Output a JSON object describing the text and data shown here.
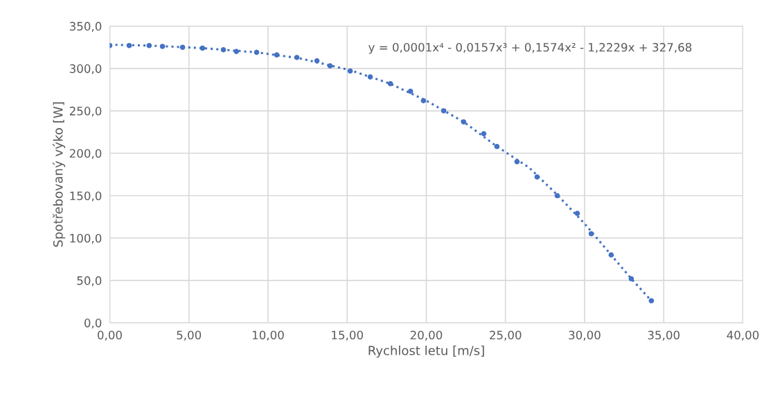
{
  "chart_data": {
    "type": "scatter",
    "xlabel": "Rychlost letu [m/s]",
    "ylabel": "Spotřebovaný výko [W]",
    "annotations": [
      "y = 0,0001x⁴ - 0,0157x³ + 0,1574x² - 1,2229x + 327,68"
    ],
    "x": [
      0,
      1.23,
      2.49,
      3.33,
      4.6,
      5.86,
      7.18,
      8.0,
      9.28,
      10.55,
      11.82,
      13.09,
      13.92,
      15.19,
      16.46,
      17.73,
      19.0,
      19.82,
      21.1,
      22.36,
      23.63,
      24.46,
      25.73,
      27.0,
      28.27,
      29.54,
      30.42,
      31.68,
      32.95,
      34.22
    ],
    "series": [
      {
        "color": "#4472c4",
        "marker": "circle",
        "values": [
          327,
          327,
          327,
          326,
          325,
          324,
          322,
          320,
          319,
          316,
          313,
          309,
          303,
          297,
          290,
          282,
          273,
          262,
          250,
          237,
          223,
          208,
          190,
          172,
          150,
          129,
          105,
          80,
          52,
          26
        ]
      },
      {
        "type": "line",
        "color": "#4472c4",
        "line_style": "dotted",
        "x": [
          0,
          2.49,
          5.86,
          9.28,
          12.0,
          15.19,
          17.73,
          20.0,
          22.36,
          24.46,
          26.5,
          28.27,
          30.0,
          31.68,
          33.0,
          34.22
        ],
        "values": [
          328,
          327,
          324,
          319,
          312,
          298,
          282,
          262,
          237,
          208,
          183,
          151,
          117,
          80,
          51,
          26
        ]
      }
    ],
    "xlim": [
      0,
      40
    ],
    "xticks": [
      {
        "value": 0,
        "label": "0,00"
      },
      {
        "value": 5,
        "label": "5,00"
      },
      {
        "value": 10,
        "label": "10,00"
      },
      {
        "value": 15,
        "label": "15,00"
      },
      {
        "value": 20,
        "label": "20,00"
      },
      {
        "value": 25,
        "label": "25,00"
      },
      {
        "value": 30,
        "label": "30,00"
      },
      {
        "value": 35,
        "label": "35,00"
      },
      {
        "value": 40,
        "label": "40,00"
      }
    ],
    "ylim": [
      0,
      350
    ],
    "yticks": [
      {
        "value": 0,
        "label": "0,0"
      },
      {
        "value": 50,
        "label": "50,0"
      },
      {
        "value": 100,
        "label": "100,0"
      },
      {
        "value": 150,
        "label": "150,0"
      },
      {
        "value": 200,
        "label": "200,0"
      },
      {
        "value": 250,
        "label": "250,0"
      },
      {
        "value": 300,
        "label": "300,0"
      },
      {
        "value": 350,
        "label": "350,0"
      }
    ],
    "grid": true
  }
}
